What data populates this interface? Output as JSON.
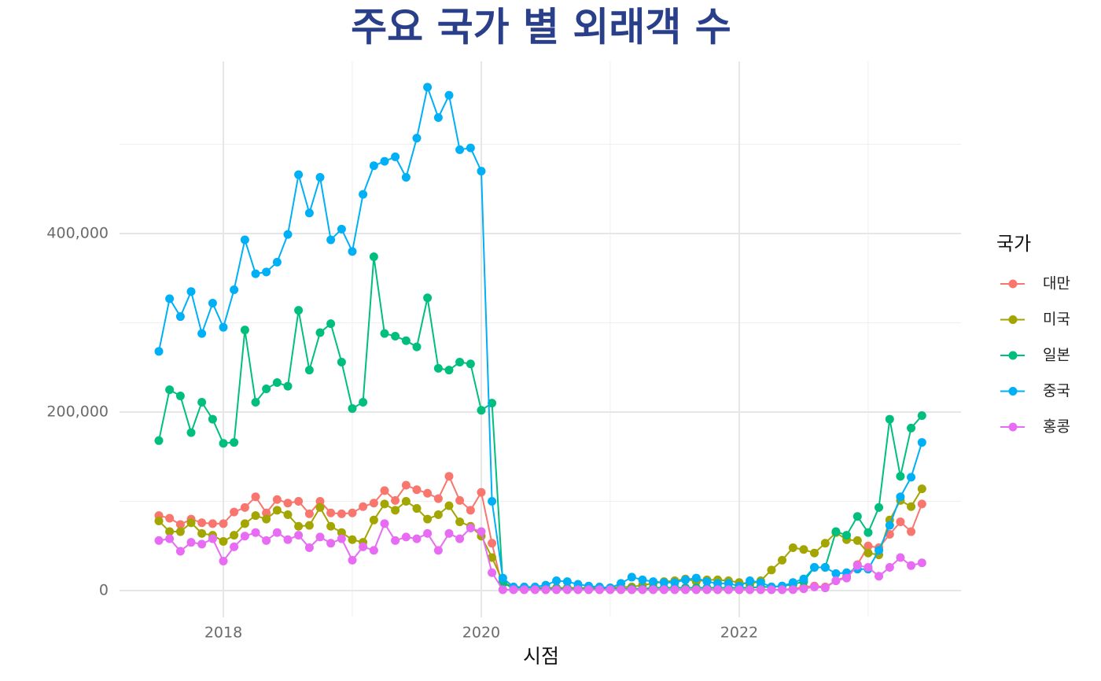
{
  "chart_data": {
    "type": "line",
    "title": "주요 국가 별 외래객 수",
    "xlabel": "시점",
    "legend_title": "국가",
    "legend": "right",
    "grid": true,
    "x": [
      2017.5,
      2017.583,
      2017.667,
      2017.75,
      2017.833,
      2017.917,
      2018,
      2018.083,
      2018.167,
      2018.25,
      2018.333,
      2018.417,
      2018.5,
      2018.583,
      2018.667,
      2018.75,
      2018.833,
      2018.917,
      2019,
      2019.083,
      2019.167,
      2019.25,
      2019.333,
      2019.417,
      2019.5,
      2019.583,
      2019.667,
      2019.75,
      2019.833,
      2019.917,
      2020,
      2020.083,
      2020.167,
      2020.25,
      2020.333,
      2020.417,
      2020.5,
      2020.583,
      2020.667,
      2020.75,
      2020.833,
      2020.917,
      2021,
      2021.083,
      2021.167,
      2021.25,
      2021.333,
      2021.417,
      2021.5,
      2021.583,
      2021.667,
      2021.75,
      2021.833,
      2021.917,
      2022,
      2022.083,
      2022.167,
      2022.25,
      2022.333,
      2022.417,
      2022.5,
      2022.583,
      2022.667,
      2022.75,
      2022.833,
      2022.917,
      2023,
      2023.083,
      2023.167,
      2023.25,
      2023.333,
      2023.417
    ],
    "series": [
      {
        "name": "대만",
        "color": "#F8766D",
        "values": [
          84000,
          81000,
          74000,
          80000,
          76000,
          75000,
          75000,
          88000,
          93000,
          105000,
          87000,
          102000,
          98000,
          100000,
          86000,
          100000,
          87000,
          86000,
          87000,
          94000,
          98000,
          112000,
          101000,
          118000,
          113000,
          109000,
          103000,
          128000,
          101000,
          90000,
          110000,
          53000,
          1000,
          1000,
          1000,
          1000,
          1000,
          1000,
          1000,
          1000,
          1000,
          1000,
          1000,
          1000,
          1000,
          1000,
          1000,
          1000,
          1000,
          1000,
          1000,
          1000,
          1000,
          1000,
          1000,
          1000,
          1000,
          1000,
          1000,
          2000,
          4000,
          5000,
          4000,
          11000,
          16000,
          29000,
          50000,
          48000,
          63000,
          77000,
          66000,
          97000
        ]
      },
      {
        "name": "미국",
        "color": "#A3A500",
        "values": [
          78000,
          66000,
          66000,
          76000,
          64000,
          62000,
          55000,
          62000,
          75000,
          84000,
          80000,
          90000,
          85000,
          72000,
          73000,
          93000,
          72000,
          65000,
          57000,
          54000,
          79000,
          97000,
          90000,
          100000,
          92000,
          80000,
          85000,
          95000,
          77000,
          72000,
          61000,
          37000,
          10000,
          3000,
          3000,
          3000,
          3000,
          3000,
          3000,
          3000,
          3000,
          3000,
          3000,
          4000,
          4000,
          6000,
          8000,
          10000,
          11000,
          13000,
          10000,
          12000,
          12000,
          11000,
          9000,
          7000,
          11000,
          23000,
          34000,
          48000,
          46000,
          42000,
          53000,
          65000,
          57000,
          56000,
          42000,
          40000,
          79000,
          101000,
          94000,
          114000
        ]
      },
      {
        "name": "일본",
        "color": "#00BF7D",
        "values": [
          168000,
          225000,
          218000,
          177000,
          211000,
          192000,
          165000,
          166000,
          292000,
          211000,
          226000,
          233000,
          229000,
          314000,
          247000,
          289000,
          299000,
          256000,
          204000,
          211000,
          374000,
          288000,
          285000,
          280000,
          273000,
          328000,
          249000,
          247000,
          256000,
          254000,
          202000,
          210000,
          8000,
          3000,
          3000,
          3000,
          2000,
          2000,
          2000,
          2000,
          2000,
          2000,
          2000,
          2000,
          2000,
          2000,
          3000,
          3000,
          3000,
          3000,
          3000,
          3000,
          3000,
          3000,
          3000,
          3000,
          4000,
          4000,
          5000,
          7000,
          10000,
          26000,
          26000,
          66000,
          62000,
          83000,
          65000,
          93000,
          192000,
          128000,
          182000,
          196000
        ]
      },
      {
        "name": "중국",
        "color": "#00B0F6",
        "values": [
          268000,
          327000,
          307000,
          335000,
          288000,
          322000,
          295000,
          337000,
          393000,
          355000,
          357000,
          368000,
          399000,
          466000,
          423000,
          463000,
          393000,
          405000,
          380000,
          444000,
          476000,
          481000,
          486000,
          463000,
          507000,
          564000,
          530000,
          555000,
          494000,
          496000,
          470000,
          100000,
          14000,
          4000,
          4000,
          4000,
          6000,
          11000,
          10000,
          7000,
          5000,
          4000,
          3000,
          8000,
          15000,
          12000,
          10000,
          9000,
          9000,
          12000,
          14000,
          10000,
          8000,
          8000,
          5000,
          11000,
          9000,
          4000,
          5000,
          9000,
          13000,
          26000,
          26000,
          19000,
          20000,
          24000,
          24000,
          45000,
          73000,
          105000,
          127000,
          166000
        ]
      },
      {
        "name": "홍콩",
        "color": "#E76BF3",
        "values": [
          56000,
          58000,
          44000,
          54000,
          52000,
          58000,
          33000,
          49000,
          61000,
          65000,
          56000,
          65000,
          57000,
          62000,
          48000,
          60000,
          53000,
          58000,
          34000,
          49000,
          45000,
          75000,
          56000,
          60000,
          58000,
          64000,
          45000,
          64000,
          58000,
          70000,
          66000,
          20000,
          1000,
          1000,
          1000,
          1000,
          1000,
          1000,
          1000,
          1000,
          1000,
          1000,
          1000,
          1000,
          1000,
          1000,
          1000,
          1000,
          1000,
          1000,
          1000,
          1000,
          1000,
          1000,
          1000,
          1000,
          1000,
          1000,
          1000,
          1000,
          2000,
          4000,
          3000,
          11000,
          14000,
          28000,
          26000,
          16000,
          26000,
          37000,
          28000,
          31000
        ]
      }
    ],
    "xlim": [
      2017.195,
      2023.72
    ],
    "xticks": [
      2018,
      2020,
      2022
    ],
    "minor_xticks": [
      2019,
      2021,
      2023
    ],
    "ylim": [
      -30000,
      593000
    ],
    "yticks": [
      0,
      {
        "value": 200000,
        "label": "200,000"
      },
      {
        "value": 400000,
        "label": "400,000"
      }
    ],
    "minor_yticks": [
      100000,
      300000,
      500000
    ]
  }
}
